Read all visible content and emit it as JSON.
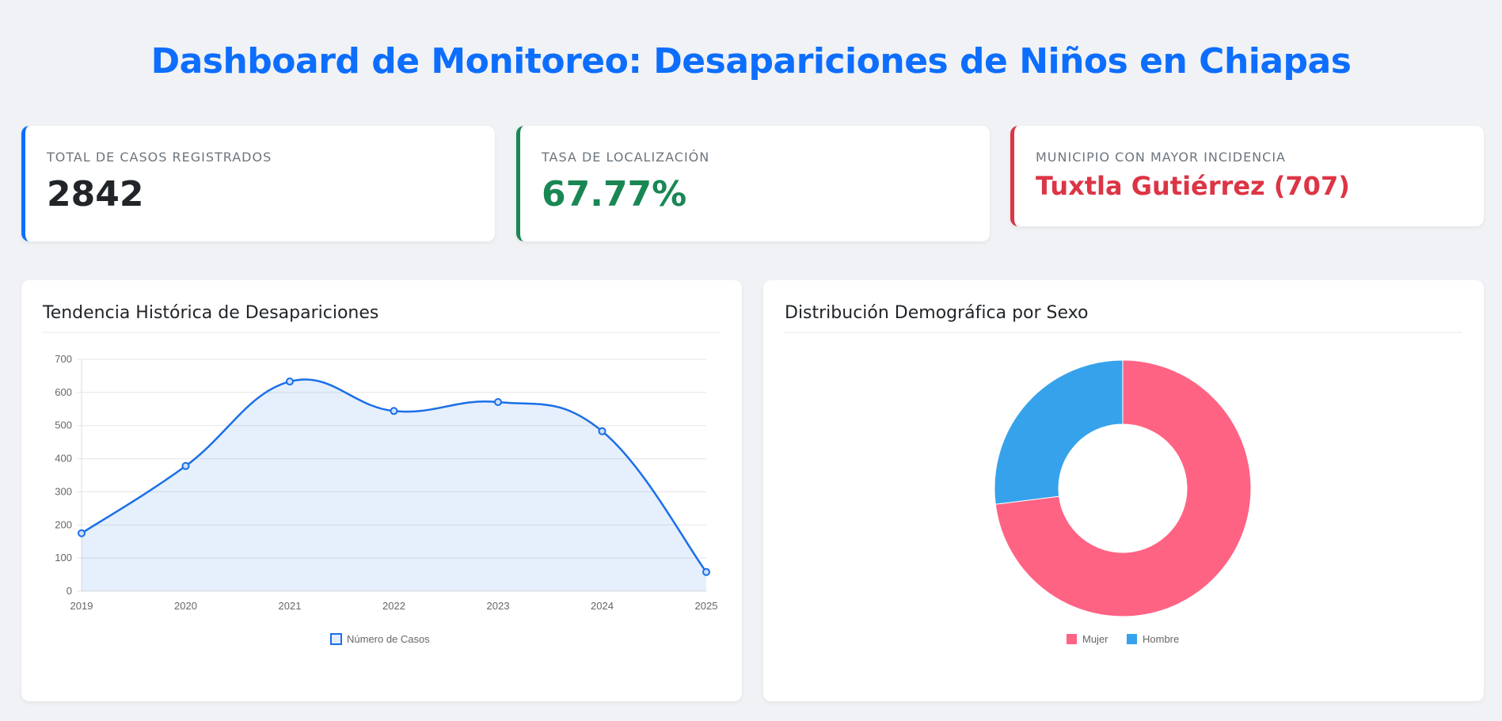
{
  "header": {
    "title": "Dashboard de Monitoreo: Desapariciones de Niños en Chiapas"
  },
  "kpis": [
    {
      "label": "TOTAL DE CASOS REGISTRADOS",
      "value": "2842"
    },
    {
      "label": "TASA DE LOCALIZACIÓN",
      "value": "67.77%"
    },
    {
      "label": "MUNICIPIO CON MAYOR INCIDENCIA",
      "value": "Tuxtla Gutiérrez (707)"
    }
  ],
  "chart_data": [
    {
      "type": "line",
      "title": "Tendencia Histórica de Desapariciones",
      "categories": [
        "2019",
        "2020",
        "2021",
        "2022",
        "2023",
        "2024",
        "2025"
      ],
      "series": [
        {
          "name": "Número de Casos",
          "color": "#1a6fe8",
          "values": [
            175,
            378,
            633,
            544,
            571,
            483,
            58
          ]
        }
      ],
      "ylim": [
        0,
        700
      ],
      "yticks": [
        0,
        100,
        200,
        300,
        400,
        500,
        600,
        700
      ],
      "grid": true
    },
    {
      "type": "doughnut",
      "title": "Distribución Demográfica por Sexo",
      "categories": [
        "Mujer",
        "Hombre"
      ],
      "values": [
        2075,
        767
      ],
      "colors": [
        "#ff6384",
        "#36a2eb"
      ]
    }
  ]
}
